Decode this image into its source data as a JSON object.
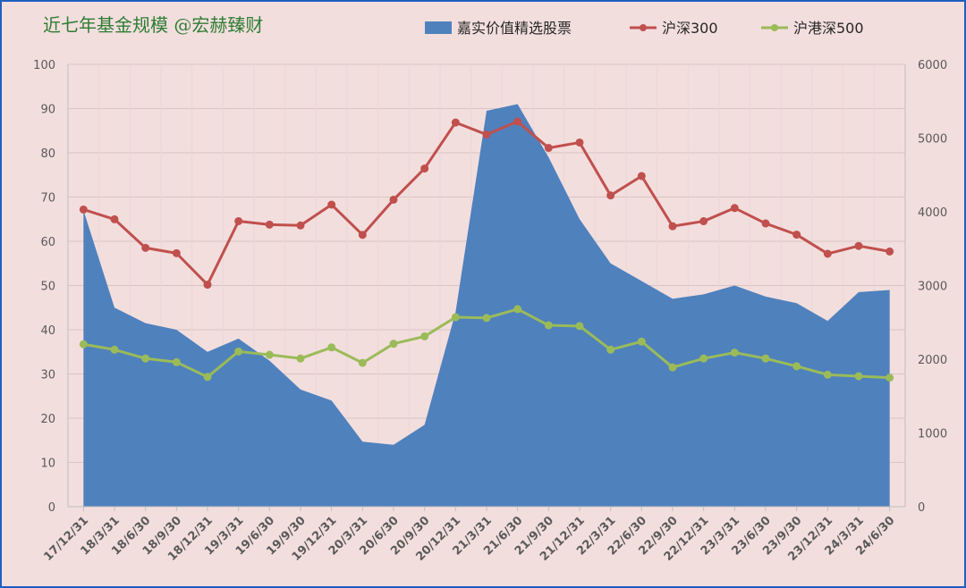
{
  "chart_data": {
    "type": "area",
    "title": "近七年基金规模 @宏赫臻财",
    "categories": [
      "17/12/31",
      "18/3/31",
      "18/6/30",
      "18/9/30",
      "18/12/31",
      "19/3/31",
      "19/6/30",
      "19/9/30",
      "19/12/31",
      "20/3/31",
      "20/6/30",
      "20/9/30",
      "20/12/31",
      "21/3/31",
      "21/6/30",
      "21/9/30",
      "21/12/31",
      "22/3/31",
      "22/6/30",
      "22/9/30",
      "22/12/31",
      "23/3/31",
      "23/6/30",
      "23/9/30",
      "23/12/31",
      "24/3/31",
      "24/6/30"
    ],
    "y_left": {
      "min": 0,
      "max": 100,
      "ticks": [
        "0",
        "10",
        "20",
        "30",
        "40",
        "50",
        "60",
        "70",
        "80",
        "90",
        "100"
      ]
    },
    "y_right": {
      "min": 0,
      "max": 6000,
      "ticks": [
        "0",
        "1000",
        "2000",
        "3000",
        "4000",
        "5000",
        "6000"
      ]
    },
    "grid": true,
    "legend_position": "top",
    "series": [
      {
        "name": "嘉实价值精选股票",
        "type": "area",
        "axis": "left",
        "color": "#4f81bd",
        "values": [
          67,
          45,
          41.5,
          40,
          35,
          38,
          33,
          26.5,
          24,
          14.7,
          14,
          18.5,
          44,
          89.5,
          91,
          79,
          65,
          55,
          51,
          47,
          48,
          50,
          47.5,
          46,
          42,
          48.5,
          49
        ]
      },
      {
        "name": "沪深300",
        "type": "line",
        "axis": "right",
        "color": "#c0504d",
        "values": [
          4031,
          3898,
          3511,
          3438,
          3011,
          3873,
          3826,
          3815,
          4097,
          3687,
          4164,
          4587,
          5211,
          5048,
          5224,
          4866,
          4940,
          4222,
          4485,
          3804,
          3872,
          4051,
          3842,
          3690,
          3431,
          3537,
          3462
        ]
      },
      {
        "name": "沪港深500",
        "type": "line",
        "axis": "right",
        "color": "#9bbb59",
        "values": [
          2203,
          2130,
          2010,
          1960,
          1760,
          2105,
          2060,
          2010,
          2160,
          1950,
          2210,
          2310,
          2570,
          2560,
          2680,
          2460,
          2450,
          2130,
          2240,
          1890,
          2010,
          2090,
          2010,
          1905,
          1790,
          1770,
          1750
        ]
      }
    ]
  }
}
